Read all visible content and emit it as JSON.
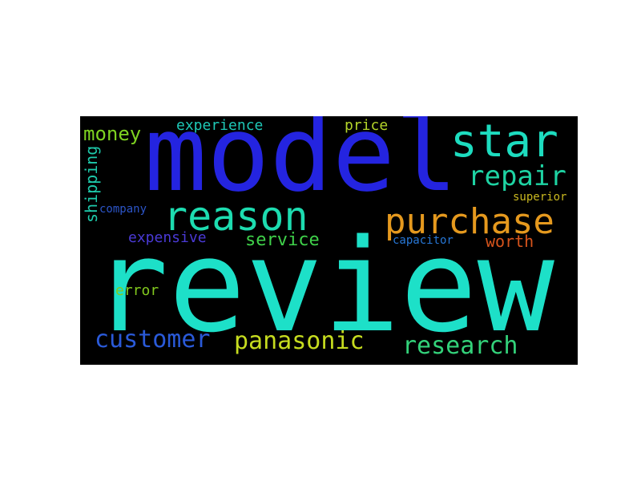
{
  "words": {
    "review": {
      "text": "review",
      "color": "#1de0c8"
    },
    "model": {
      "text": "model",
      "color": "#2424e0"
    },
    "star": {
      "text": "star",
      "color": "#1ddcbf"
    },
    "reason": {
      "text": "reason",
      "color": "#1ddcb0"
    },
    "purchase": {
      "text": "purchase",
      "color": "#e5991e"
    },
    "repair": {
      "text": "repair",
      "color": "#1ed3a3"
    },
    "customer": {
      "text": "customer",
      "color": "#2a5ad9"
    },
    "panasonic": {
      "text": "panasonic",
      "color": "#c6dc1f"
    },
    "research": {
      "text": "research",
      "color": "#33d27a"
    },
    "money": {
      "text": "money",
      "color": "#7ed321"
    },
    "experience": {
      "text": "experience",
      "color": "#1ec9b7"
    },
    "price": {
      "text": "price",
      "color": "#b4d42a"
    },
    "shipping": {
      "text": "shipping",
      "color": "#1ec9aa"
    },
    "company": {
      "text": "company",
      "color": "#2c55c8"
    },
    "service": {
      "text": "service",
      "color": "#3fd14a"
    },
    "expensive": {
      "text": "expensive",
      "color": "#4a3ad6"
    },
    "superior": {
      "text": "superior",
      "color": "#c9b820"
    },
    "capacitor": {
      "text": "capacitor",
      "color": "#2777d6"
    },
    "worth": {
      "text": "worth",
      "color": "#d6541c"
    },
    "error": {
      "text": "error",
      "color": "#82c91e"
    }
  }
}
